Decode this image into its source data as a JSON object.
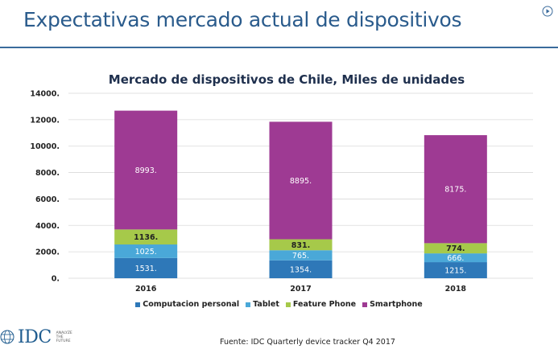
{
  "slide": {
    "title": "Expectativas mercado actual de dispositivos",
    "play_icon": "play-circle-icon",
    "source": "Fuente: IDC Quarterly device tracker Q4 2017",
    "logo": {
      "text": "IDC",
      "tagline": [
        "ANALYZE",
        "THE",
        "FUTURE"
      ]
    }
  },
  "chart_data": {
    "type": "bar",
    "stacked": true,
    "title": "Mercado de dispositivos de Chile, Miles de unidades",
    "categories": [
      "2016",
      "2017",
      "2018"
    ],
    "series": [
      {
        "name": "Computacion personal",
        "values": [
          1531,
          1354,
          1215
        ],
        "labels": [
          "1531.",
          "1354.",
          "1215."
        ],
        "color": "#2e78b8"
      },
      {
        "name": "Tablet",
        "values": [
          1025,
          765,
          666
        ],
        "labels": [
          "1025.",
          "765.",
          "666."
        ],
        "color": "#4aa8d8"
      },
      {
        "name": "Feature Phone",
        "values": [
          1136,
          831,
          774
        ],
        "labels": [
          "1136.",
          "831.",
          "774."
        ],
        "color": "#a6c94a"
      },
      {
        "name": "Smartphone",
        "values": [
          8993,
          8895,
          8175
        ],
        "labels": [
          "8993.",
          "8895.",
          "8175."
        ],
        "color": "#9e3a93"
      }
    ],
    "yticks": [
      "0.",
      "2000.",
      "4000.",
      "6000.",
      "8000.",
      "10000.",
      "12000.",
      "14000."
    ],
    "ylim": [
      0,
      14000
    ],
    "grid": true,
    "legend_position": "bottom"
  }
}
